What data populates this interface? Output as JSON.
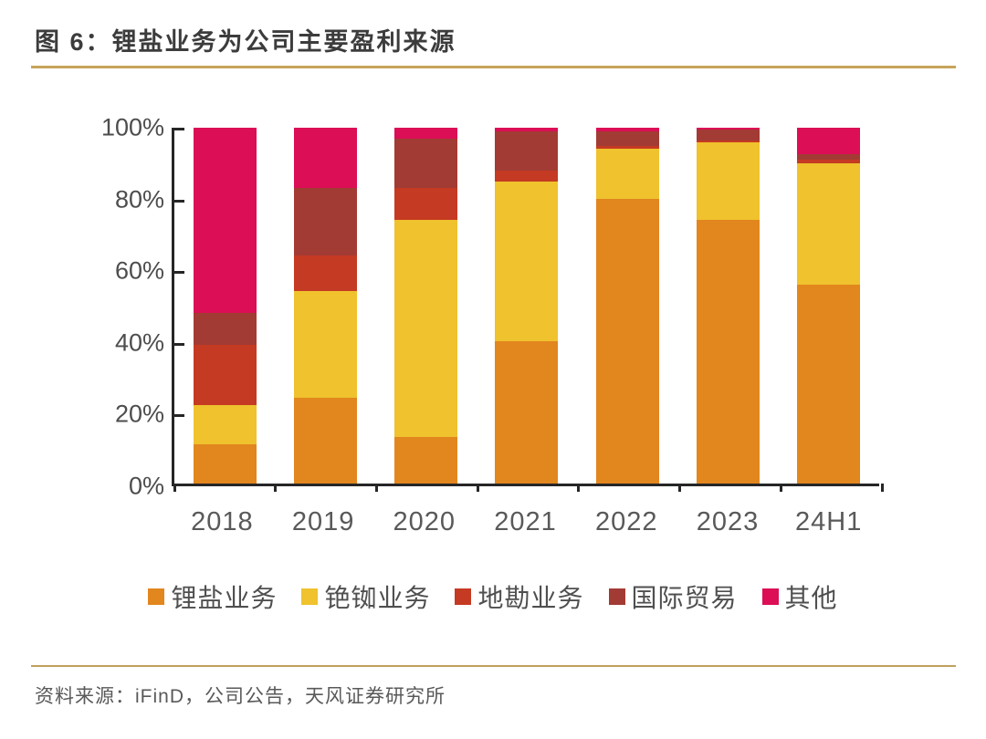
{
  "title": "图 6：锂盐业务为公司主要盈利来源",
  "source": "资料来源：iFinD，公司公告，天风证券研究所",
  "colors": {
    "accent_rule": "#c7a45c",
    "axis": "#262626",
    "axis_label": "#4d4d4d",
    "category_label": "#595959",
    "title_text": "#3c3c3c",
    "source_text": "#595959"
  },
  "chart_data": {
    "type": "bar",
    "stacked": true,
    "percent": true,
    "title": "图 6：锂盐业务为公司主要盈利来源",
    "categories": [
      "2018",
      "2019",
      "2020",
      "2021",
      "2022",
      "2023",
      "24H1"
    ],
    "series": [
      {
        "name": "锂盐业务",
        "color": "#e2861e",
        "values": [
          11,
          24,
          13,
          40,
          80,
          74,
          56
        ]
      },
      {
        "name": "铯铷业务",
        "color": "#efc22e",
        "values": [
          11,
          30,
          61,
          45,
          14,
          22,
          34
        ]
      },
      {
        "name": "地勘业务",
        "color": "#c53a22",
        "values": [
          17,
          10,
          9,
          3,
          1,
          0.5,
          1
        ]
      },
      {
        "name": "国际贸易",
        "color": "#a23b34",
        "values": [
          9,
          19,
          14,
          11,
          4,
          3,
          1.5
        ]
      },
      {
        "name": "其他",
        "color": "#db0e56",
        "values": [
          52,
          17,
          3,
          1,
          1,
          0.5,
          7.5
        ]
      }
    ],
    "xlabel": "",
    "ylabel": "",
    "ylim": [
      0,
      100
    ],
    "y_ticks": [
      "0%",
      "20%",
      "40%",
      "60%",
      "80%",
      "100%"
    ],
    "grid": false,
    "legend_position": "bottom"
  }
}
